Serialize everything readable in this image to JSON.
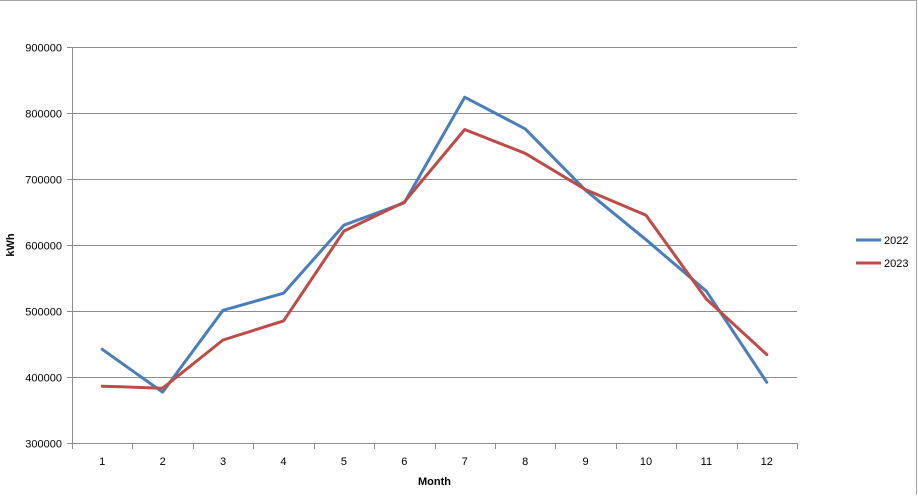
{
  "chart_data": {
    "type": "line",
    "xlabel": "Month",
    "ylabel": "kWh",
    "ylim": [
      300000,
      900000
    ],
    "yticks": [
      300000,
      400000,
      500000,
      600000,
      700000,
      800000,
      900000
    ],
    "categories": [
      "1",
      "2",
      "3",
      "4",
      "5",
      "6",
      "7",
      "8",
      "9",
      "10",
      "11",
      "12"
    ],
    "grid": "horizontal",
    "legend_position": "right",
    "series": [
      {
        "name": "2022",
        "color": "#4a7ebb",
        "values": [
          442000,
          377000,
          501000,
          527000,
          630000,
          664000,
          824000,
          776000,
          683000,
          608000,
          530000,
          392000
        ]
      },
      {
        "name": "2023",
        "color": "#be4b48",
        "values": [
          386000,
          383000,
          456000,
          485000,
          621000,
          665000,
          775000,
          739000,
          684000,
          645000,
          518000,
          434000
        ]
      }
    ]
  }
}
